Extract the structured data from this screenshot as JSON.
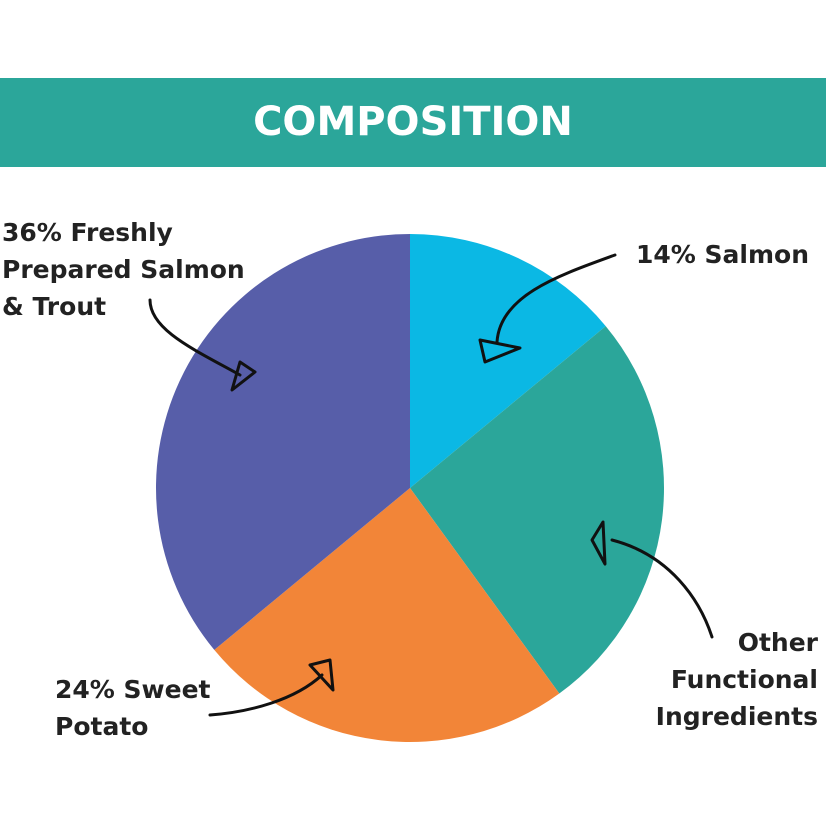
{
  "chart_data": {
    "type": "pie",
    "title": "COMPOSITION",
    "categories": [
      "14% Salmon",
      "Other\nFunctional\nIngredients",
      "24% Sweet\nPotato",
      "36% Freshly\nPrepared Salmon\n& Trout"
    ],
    "values": [
      14,
      26,
      24,
      36
    ],
    "colors": [
      "#0bb8e4",
      "#2ba69a",
      "#f28538",
      "#575ea9"
    ]
  }
}
